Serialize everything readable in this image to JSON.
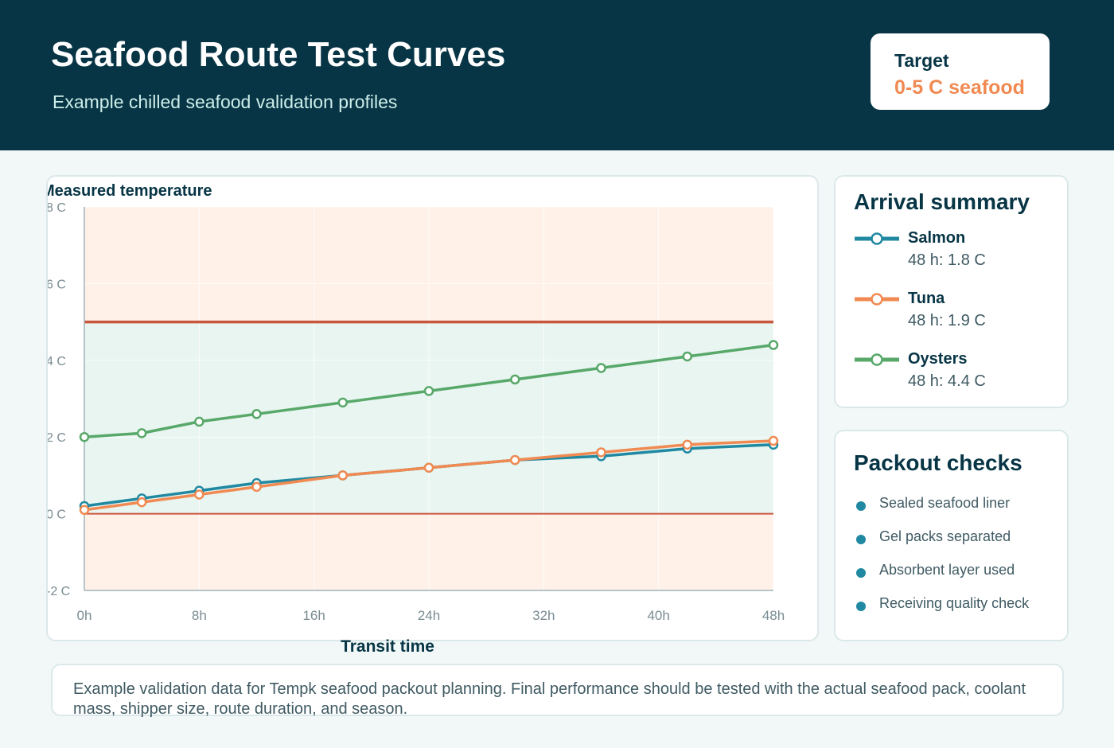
{
  "header": {
    "title": "Seafood Route Test Curves",
    "subtitle": "Example chilled seafood validation profiles",
    "target_label": "Target",
    "target_value": "0-5 C seafood"
  },
  "colors": {
    "header_bg": "#073545",
    "accent_orange": "#f08a52",
    "salmon": "#2089a1",
    "tuna": "#f08a52",
    "oysters": "#58a86a",
    "limit_line": "#c9563f",
    "safe_zone": "#e8f5f0",
    "out_zone": "#fff1e8"
  },
  "chart_data": {
    "type": "line",
    "title": "",
    "ylabel": "Measured temperature",
    "xlabel": "Transit time",
    "x_ticks": [
      "0h",
      "8h",
      "16h",
      "24h",
      "32h",
      "40h",
      "48h"
    ],
    "x_tick_values": [
      0,
      8,
      16,
      24,
      32,
      40,
      48
    ],
    "y_ticks": [
      "-2 C",
      "0 C",
      "2 C",
      "4 C",
      "6 C",
      "8 C"
    ],
    "y_tick_values": [
      -2,
      0,
      2,
      4,
      6,
      8
    ],
    "xlim": [
      0,
      48
    ],
    "ylim": [
      -2,
      8
    ],
    "target_band": [
      0,
      5
    ],
    "grid": true,
    "legend": "right-panel",
    "x": [
      0,
      4,
      8,
      12,
      18,
      24,
      30,
      36,
      42,
      48
    ],
    "series": [
      {
        "name": "Salmon",
        "color": "#2089a1",
        "values": [
          0.2,
          0.4,
          0.6,
          0.8,
          1.0,
          1.2,
          1.4,
          1.5,
          1.7,
          1.8
        ]
      },
      {
        "name": "Tuna",
        "color": "#f08a52",
        "values": [
          0.1,
          0.3,
          0.5,
          0.7,
          1.0,
          1.2,
          1.4,
          1.6,
          1.8,
          1.9
        ]
      },
      {
        "name": "Oysters",
        "color": "#58a86a",
        "values": [
          2.0,
          2.1,
          2.4,
          2.6,
          2.9,
          3.2,
          3.5,
          3.8,
          4.1,
          4.4
        ]
      }
    ]
  },
  "summary": {
    "title": "Arrival summary",
    "items": [
      {
        "name": "Salmon",
        "value": "48 h: 1.8 C",
        "color": "#2089a1"
      },
      {
        "name": "Tuna",
        "value": "48 h: 1.9 C",
        "color": "#f08a52"
      },
      {
        "name": "Oysters",
        "value": "48 h: 4.4 C",
        "color": "#58a86a"
      }
    ]
  },
  "checks": {
    "title": "Packout checks",
    "items": [
      "Sealed seafood liner",
      "Gel packs separated",
      "Absorbent layer used",
      "Receiving quality check"
    ]
  },
  "note": {
    "text": "Example validation data for Tempk seafood packout planning. Final performance should be tested with the actual seafood pack, coolant mass, shipper size, route duration, and season."
  }
}
